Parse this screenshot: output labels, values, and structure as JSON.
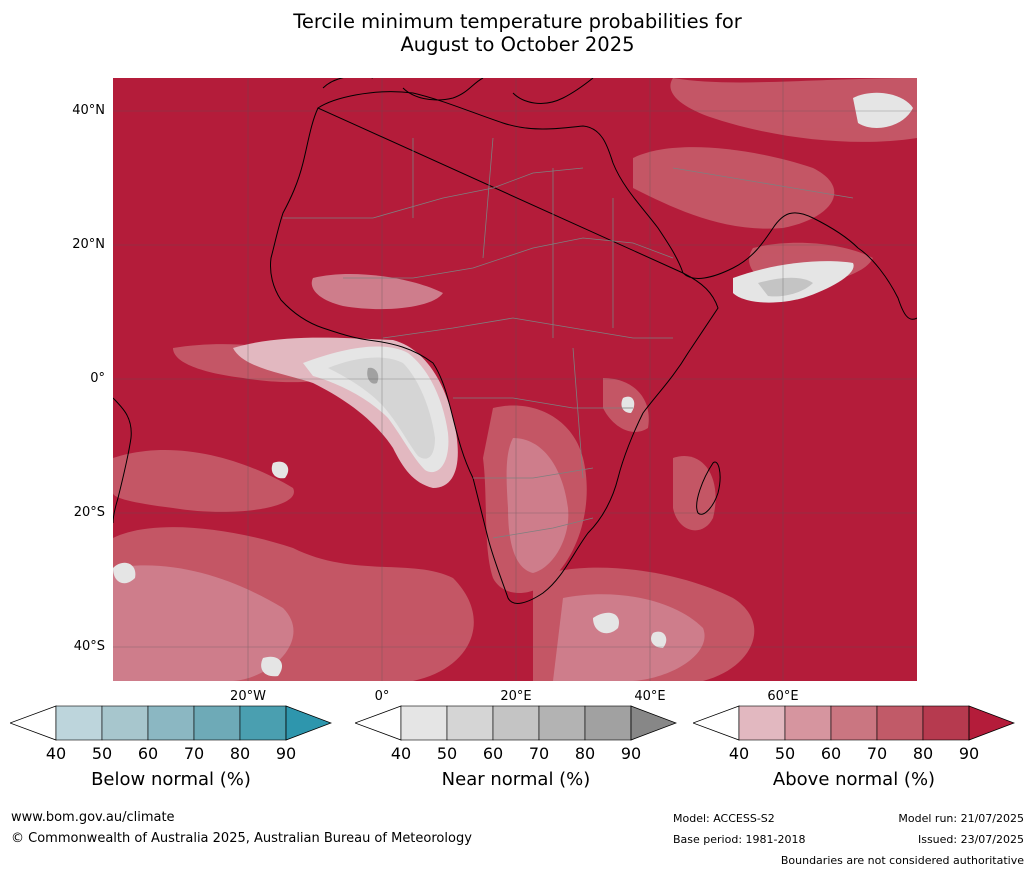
{
  "title_line1": "Tercile minimum temperature probabilities for",
  "title_line2": "August to October 2025",
  "lat_labels": [
    "40°N",
    "20°N",
    "0°",
    "20°S",
    "40°S"
  ],
  "lon_labels": [
    "20°W",
    "0°",
    "20°E",
    "40°E",
    "60°E"
  ],
  "colorbars": [
    {
      "title": "Below normal (%)",
      "ticks": [
        "40",
        "50",
        "60",
        "70",
        "80",
        "90"
      ],
      "colors": [
        "#ffffff",
        "#bdd5dc",
        "#a7c6cd",
        "#8bb7c2",
        "#6eaab7",
        "#4a9fb0",
        "#2e96ad"
      ]
    },
    {
      "title": "Near normal (%)",
      "ticks": [
        "40",
        "50",
        "60",
        "70",
        "80",
        "90"
      ],
      "colors": [
        "#ffffff",
        "#e5e5e5",
        "#d5d5d5",
        "#c4c4c4",
        "#b3b3b3",
        "#a1a1a1",
        "#878787"
      ]
    },
    {
      "title": "Above normal (%)",
      "ticks": [
        "40",
        "50",
        "60",
        "70",
        "80",
        "90"
      ],
      "colors": [
        "#ffffff",
        "#e2b8c0",
        "#d6959f",
        "#ca7681",
        "#c15a68",
        "#b63a4f",
        "#b41c3a"
      ]
    }
  ],
  "footer": {
    "url": "www.bom.gov.au/climate",
    "copyright": "© Commonwealth of Australia 2025, Australian Bureau of Meteorology",
    "model": "Model: ACCESS-S2",
    "base_period": "Base period: 1981-2018",
    "model_run": "Model run: 21/07/2025",
    "issued": "Issued: 23/07/2025",
    "disclaimer": "Boundaries are not considered authoritative"
  },
  "colors": {
    "above_90": "#b41c3a",
    "above_80": "#bc3a51",
    "above_70": "#c55a68",
    "above_60": "#d08390",
    "above_50": "#e2b8c0",
    "near_40": "#e5e5e5",
    "near_50": "#d5d5d5",
    "near_60": "#c4c4c4"
  }
}
